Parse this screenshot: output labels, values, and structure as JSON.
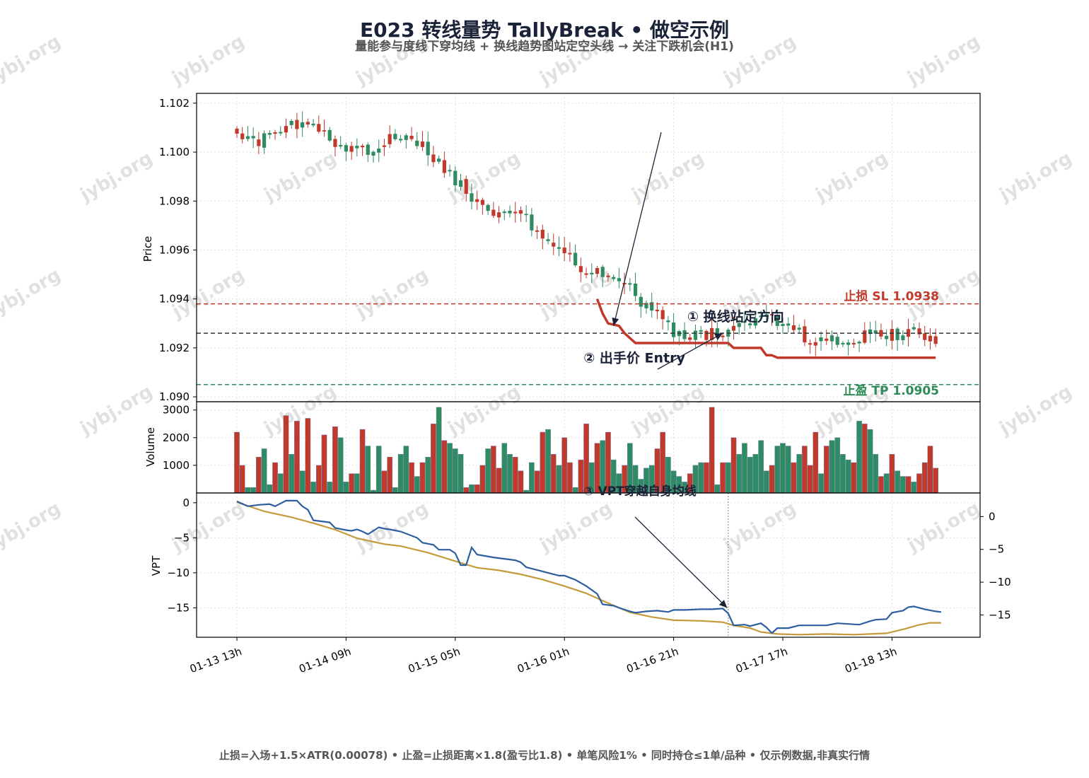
{
  "title": "E023 转线量势 TallyBreak • 做空示例",
  "subtitle": "量能参与度线下穿均线 + 换线趋势图站定空头线 → 关注下跌机会(H1)",
  "footer": "止损=入场+1.5×ATR(0.00078) • 止盈=止损距离×1.8(盈亏比1.8) • 单笔风险1% • 同时持仓≤1单/品种 • 仅示例数据,非真实行情",
  "watermark": "jybj.org",
  "colors": {
    "up": "#2e8b62",
    "down": "#c0392b",
    "stop_line": "#c0392b",
    "entry_line": "#333333",
    "tp_line": "#2e8b57",
    "vpt": "#2d5fa0",
    "vpt_ma": "#c49a3a",
    "annotation": "#1a2238",
    "watermark": "#c8c8c8"
  },
  "chart_data": [
    {
      "panel": "price",
      "type": "candlestick",
      "ylabel": "Price",
      "ylim": [
        1.0898,
        1.1024
      ],
      "yticks": [
        1.09,
        1.092,
        1.094,
        1.096,
        1.098,
        1.1,
        1.102
      ],
      "ytick_labels": [
        "1.090",
        "1.092",
        "1.094",
        "1.096",
        "1.098",
        "1.100",
        "1.102"
      ],
      "x_labels": [
        "01-13 13h",
        "01-14 09h",
        "01-15 05h",
        "01-16 01h",
        "01-16 21h",
        "01-17 17h",
        "01-18 13h"
      ],
      "x_label_index": [
        0,
        20,
        40,
        60,
        80,
        100,
        120
      ],
      "bar_count": 129,
      "close_anchors": [
        [
          0,
          1.1008
        ],
        [
          3,
          1.1004
        ],
        [
          6,
          1.1006
        ],
        [
          9,
          1.101
        ],
        [
          11,
          1.1011
        ],
        [
          13,
          1.1012
        ],
        [
          16,
          1.1007
        ],
        [
          19,
          1.1003
        ],
        [
          22,
          1.1002
        ],
        [
          25,
          1.1001
        ],
        [
          28,
          1.1005
        ],
        [
          31,
          1.1008
        ],
        [
          34,
          1.1002
        ],
        [
          37,
          1.0995
        ],
        [
          40,
          1.0988
        ],
        [
          43,
          1.0982
        ],
        [
          45,
          1.0978
        ],
        [
          47,
          1.0975
        ],
        [
          50,
          1.0976
        ],
        [
          53,
          1.0972
        ],
        [
          56,
          1.0966
        ],
        [
          58,
          1.0962
        ],
        [
          61,
          1.0957
        ],
        [
          63,
          1.0952
        ],
        [
          66,
          1.0952
        ],
        [
          69,
          1.095
        ],
        [
          72,
          1.0944
        ],
        [
          75,
          1.0936
        ],
        [
          78,
          1.0932
        ],
        [
          80,
          1.0926
        ],
        [
          82,
          1.0924
        ],
        [
          85,
          1.0925
        ],
        [
          88,
          1.0927
        ],
        [
          91,
          1.0928
        ],
        [
          94,
          1.0931
        ],
        [
          97,
          1.0933
        ],
        [
          100,
          1.093
        ],
        [
          103,
          1.0927
        ],
        [
          105,
          1.0922
        ],
        [
          107,
          1.0925
        ],
        [
          110,
          1.0923
        ],
        [
          113,
          1.0922
        ],
        [
          116,
          1.0927
        ],
        [
          119,
          1.0926
        ],
        [
          122,
          1.0925
        ],
        [
          125,
          1.0927
        ],
        [
          127,
          1.0923
        ],
        [
          128,
          1.0923
        ]
      ],
      "stop_loss": {
        "value": 1.0938,
        "label": "止损 SL 1.0938"
      },
      "entry": {
        "value": 1.0926,
        "label": "② 出手价 Entry"
      },
      "take_profit": {
        "value": 1.0905,
        "label": "止盈 TP 1.0905"
      },
      "trend_line": {
        "name": "换线趋势图",
        "points": [
          [
            66,
            1.094
          ],
          [
            67,
            1.0934
          ],
          [
            68,
            1.093
          ],
          [
            70,
            1.0929
          ],
          [
            71,
            1.0926
          ],
          [
            72,
            1.0924
          ],
          [
            73,
            1.0922
          ],
          [
            90,
            1.0922
          ],
          [
            91,
            1.092
          ],
          [
            96,
            1.092
          ],
          [
            97,
            1.0917
          ],
          [
            98,
            1.0917
          ],
          [
            99,
            1.0916
          ],
          [
            128,
            1.0916
          ]
        ]
      },
      "annotations": [
        {
          "text": "① 换线站定方向",
          "x": 82.5,
          "y": 1.0931,
          "arrow_to": [
            69,
            1.0929
          ]
        },
        {
          "text": "② 出手价 Entry",
          "x": 63.5,
          "y": 1.0914,
          "arrow_to": [
            89,
            1.0926
          ]
        }
      ]
    },
    {
      "panel": "volume",
      "type": "bar",
      "ylabel": "Volume",
      "ylim": [
        0,
        3300
      ],
      "yticks": [
        1000,
        2000,
        3000
      ],
      "ytick_labels": [
        "1000",
        "2000",
        "3000"
      ],
      "values": [
        2200,
        1000,
        200,
        200,
        1300,
        1600,
        300,
        1100,
        700,
        2800,
        1400,
        2600,
        800,
        2700,
        400,
        1000,
        2100,
        400,
        2400,
        2000,
        400,
        700,
        700,
        2300,
        1700,
        100,
        1700,
        800,
        1300,
        200,
        1400,
        1700,
        1100,
        600,
        1100,
        1300,
        2500,
        3100,
        1900,
        1800,
        1600,
        1400,
        200,
        300,
        300,
        1000,
        1600,
        1700,
        900,
        1800,
        1400,
        1300,
        800,
        100,
        1100,
        800,
        2200,
        2300,
        1400,
        1000,
        2000,
        1100,
        200,
        1200,
        2500,
        1100,
        1800,
        1900,
        2200,
        1200,
        700,
        1000,
        1800,
        1000,
        500,
        900,
        1000,
        1600,
        2200,
        1300,
        800,
        600,
        400,
        700,
        1000,
        1100,
        1100,
        3100,
        300,
        1100,
        1100,
        2000,
        1400,
        1800,
        1300,
        1400,
        1900,
        800,
        1000,
        1700,
        1800,
        1700,
        1100,
        1400,
        1700,
        1000,
        2200,
        700,
        1700,
        1900,
        2000,
        1400,
        1200,
        1100,
        2600,
        2500,
        2300,
        1400,
        600,
        700,
        1400,
        800,
        600,
        600,
        400,
        700,
        1100,
        1700,
        900
      ],
      "directions": [
        "d",
        "d",
        "u",
        "u",
        "d",
        "u",
        "u",
        "d",
        "u",
        "d",
        "u",
        "d",
        "u",
        "d",
        "u",
        "d",
        "d",
        "u",
        "d",
        "u",
        "u",
        "d",
        "u",
        "d",
        "u",
        "u",
        "u",
        "d",
        "d",
        "u",
        "u",
        "u",
        "d",
        "u",
        "d",
        "u",
        "d",
        "u",
        "d",
        "u",
        "u",
        "u",
        "d",
        "u",
        "d",
        "d",
        "u",
        "d",
        "d",
        "u",
        "u",
        "d",
        "d",
        "u",
        "u",
        "d",
        "d",
        "u",
        "d",
        "u",
        "d",
        "d",
        "u",
        "d",
        "d",
        "u",
        "d",
        "u",
        "d",
        "u",
        "u",
        "d",
        "u",
        "u",
        "u",
        "u",
        "u",
        "d",
        "d",
        "u",
        "u",
        "u",
        "u",
        "d",
        "u",
        "u",
        "d",
        "d",
        "u",
        "d",
        "u",
        "d",
        "u",
        "u",
        "u",
        "u",
        "u",
        "u",
        "d",
        "u",
        "u",
        "u",
        "d",
        "u",
        "d",
        "d",
        "d",
        "u",
        "d",
        "u",
        "u",
        "u",
        "u",
        "d",
        "u",
        "d",
        "u",
        "u",
        "d",
        "u",
        "d",
        "u",
        "u",
        "d",
        "u",
        "d",
        "d",
        "d",
        "d"
      ]
    },
    {
      "panel": "vpt",
      "type": "line",
      "ylabel": "VPT",
      "ylim": [
        -19.2,
        1.4
      ],
      "yticks": [
        0,
        -5,
        -10,
        -15
      ],
      "ytick_labels": [
        "0",
        "−5",
        "−10",
        "−15"
      ],
      "right_ylim": [
        -18.4,
        3.6
      ],
      "right_yticks": [
        0,
        -5,
        -10,
        -15
      ],
      "right_ytick_labels": [
        "0",
        "−5",
        "−10",
        "−15"
      ],
      "series": [
        {
          "key": "vpt",
          "points": [
            [
              0,
              0.2
            ],
            [
              2,
              -0.5
            ],
            [
              4,
              -0.3
            ],
            [
              6,
              -0.2
            ],
            [
              7,
              -0.5
            ],
            [
              9,
              0.3
            ],
            [
              11,
              0.3
            ],
            [
              12,
              -0.5
            ],
            [
              13,
              -1.0
            ],
            [
              14,
              -2.5
            ],
            [
              15,
              -2.6
            ],
            [
              17,
              -2.8
            ],
            [
              18,
              -3.6
            ],
            [
              20,
              -3.9
            ],
            [
              21,
              -4.0
            ],
            [
              22,
              -3.8
            ],
            [
              23,
              -4.1
            ],
            [
              24,
              -4.5
            ],
            [
              26,
              -3.5
            ],
            [
              27,
              -3.7
            ],
            [
              28,
              -3.8
            ],
            [
              30,
              -4.1
            ],
            [
              33,
              -5.0
            ],
            [
              34,
              -5.7
            ],
            [
              36,
              -6.0
            ],
            [
              37,
              -6.7
            ],
            [
              39,
              -6.7
            ],
            [
              40,
              -7.2
            ],
            [
              41,
              -8.9
            ],
            [
              42,
              -8.9
            ],
            [
              43,
              -6.4
            ],
            [
              44,
              -7.4
            ],
            [
              47,
              -7.8
            ],
            [
              49,
              -8.0
            ],
            [
              51,
              -8.2
            ],
            [
              52,
              -8.5
            ],
            [
              53,
              -9.2
            ],
            [
              55,
              -9.6
            ],
            [
              57,
              -10.0
            ],
            [
              59,
              -10.4
            ],
            [
              60,
              -10.4
            ],
            [
              62,
              -11.0
            ],
            [
              64,
              -11.9
            ],
            [
              66,
              -13.0
            ],
            [
              67,
              -14.5
            ],
            [
              69,
              -14.7
            ],
            [
              70,
              -15.0
            ],
            [
              72,
              -15.5
            ],
            [
              73,
              -15.7
            ],
            [
              75,
              -15.5
            ],
            [
              77,
              -15.4
            ],
            [
              79,
              -15.6
            ],
            [
              80,
              -15.3
            ],
            [
              82,
              -15.3
            ],
            [
              85,
              -15.2
            ],
            [
              87,
              -15.2
            ],
            [
              89,
              -15.1
            ],
            [
              90,
              -15.8
            ],
            [
              91,
              -17.5
            ],
            [
              93,
              -17.4
            ],
            [
              94,
              -17.6
            ],
            [
              96,
              -17.2
            ],
            [
              97,
              -17.8
            ],
            [
              98,
              -18.6
            ],
            [
              99,
              -17.9
            ],
            [
              101,
              -17.9
            ],
            [
              103,
              -17.5
            ],
            [
              105,
              -17.5
            ],
            [
              108,
              -17.5
            ],
            [
              110,
              -17.2
            ],
            [
              112,
              -17.3
            ],
            [
              114,
              -17.4
            ],
            [
              116,
              -16.9
            ],
            [
              117,
              -16.7
            ],
            [
              119,
              -16.6
            ],
            [
              120,
              -15.7
            ],
            [
              122,
              -15.4
            ],
            [
              123,
              -14.9
            ],
            [
              124,
              -14.8
            ],
            [
              126,
              -15.2
            ],
            [
              128,
              -15.5
            ],
            [
              129,
              -15.6
            ]
          ]
        },
        {
          "key": "vpt_ma",
          "points": [
            [
              0,
              2.2
            ],
            [
              5,
              0.8
            ],
            [
              10,
              -0.1
            ],
            [
              14,
              -1.0
            ],
            [
              18,
              -2.0
            ],
            [
              22,
              -3.3
            ],
            [
              27,
              -4.2
            ],
            [
              30,
              -4.5
            ],
            [
              35,
              -5.5
            ],
            [
              40,
              -6.8
            ],
            [
              44,
              -7.8
            ],
            [
              48,
              -8.2
            ],
            [
              52,
              -8.8
            ],
            [
              56,
              -9.6
            ],
            [
              60,
              -10.6
            ],
            [
              64,
              -11.7
            ],
            [
              68,
              -13.2
            ],
            [
              72,
              -14.6
            ],
            [
              76,
              -15.3
            ],
            [
              80,
              -15.8
            ],
            [
              85,
              -15.9
            ],
            [
              89,
              -16.1
            ],
            [
              91,
              -16.6
            ],
            [
              94,
              -17.0
            ],
            [
              96,
              -17.6
            ],
            [
              99,
              -17.9
            ],
            [
              103,
              -18.0
            ],
            [
              108,
              -17.9
            ],
            [
              113,
              -18.0
            ],
            [
              116,
              -17.9
            ],
            [
              119,
              -17.8
            ],
            [
              122,
              -17.2
            ],
            [
              125,
              -16.5
            ],
            [
              127,
              -16.2
            ],
            [
              129,
              -16.2
            ]
          ]
        }
      ],
      "signal_x": 90,
      "annotation": {
        "text": "③ VPT穿越自身均线",
        "x": 63.5,
        "y": 0.4,
        "arrow_to": [
          89.8,
          -15.0
        ]
      }
    }
  ]
}
